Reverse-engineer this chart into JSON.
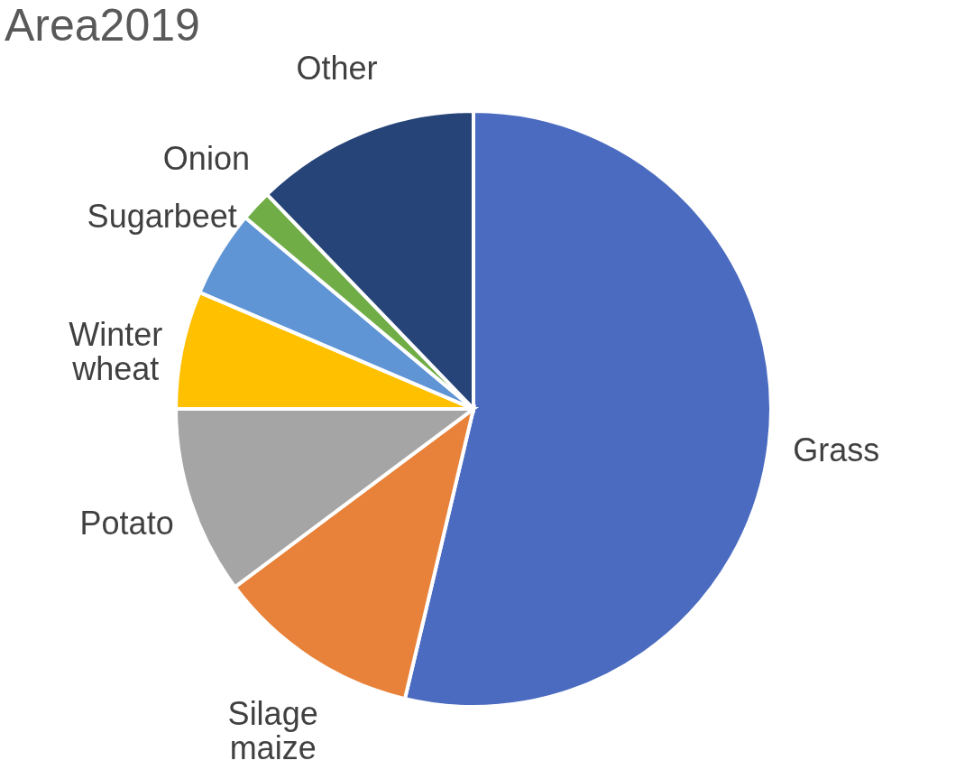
{
  "chart_data": {
    "type": "pie",
    "title": "Area2019",
    "categories": [
      "Grass",
      "Silage maize",
      "Potato",
      "Winter wheat",
      "Sugarbeet",
      "Onion",
      "Other"
    ],
    "values": [
      53.7,
      11.1,
      10.2,
      6.4,
      4.7,
      1.7,
      12.2
    ],
    "colors": [
      "#4a6bbf",
      "#e8823a",
      "#a5a5a5",
      "#ffc000",
      "#5f95d5",
      "#70ad47",
      "#264478"
    ],
    "legend": false
  }
}
